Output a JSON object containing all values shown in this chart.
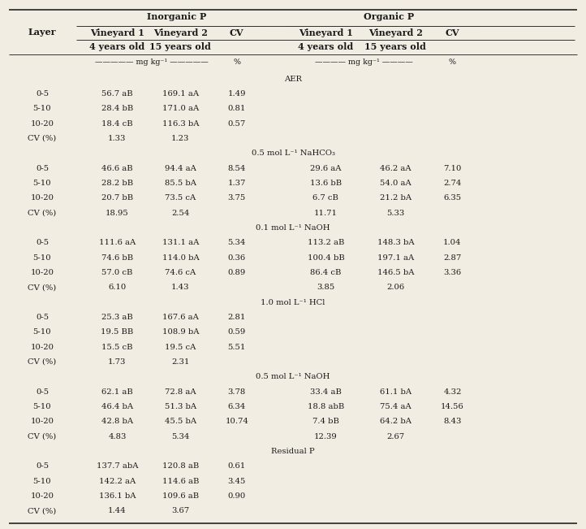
{
  "bg_color": "#f2ede3",
  "fig_width": 7.22,
  "fig_height": 6.51,
  "fs_title": 8.0,
  "fs_body": 7.2,
  "fs_units": 6.8,
  "col_x": {
    "layer": 0.072,
    "iv1": 0.2,
    "iv2": 0.308,
    "icv": 0.404,
    "ov1": 0.556,
    "ov2": 0.675,
    "ocv": 0.772
  },
  "sections": [
    {
      "section_label": "AER",
      "rows": [
        {
          "layer": "0-5",
          "v1": "56.7 aB",
          "v2": "169.1 aA",
          "cv": "1.49",
          "ov1": "",
          "ov2": "",
          "ocv": ""
        },
        {
          "layer": "5-10",
          "v1": "28.4 bB",
          "v2": "171.0 aA",
          "cv": "0.81",
          "ov1": "",
          "ov2": "",
          "ocv": ""
        },
        {
          "layer": "10-20",
          "v1": "18.4 cB",
          "v2": "116.3 bA",
          "cv": "0.57",
          "ov1": "",
          "ov2": "",
          "ocv": ""
        },
        {
          "layer": "CV (%)",
          "v1": "1.33",
          "v2": "1.23",
          "cv": "",
          "ov1": "",
          "ov2": "",
          "ocv": ""
        }
      ]
    },
    {
      "section_label": "0.5 mol L⁻¹ NaHCO₃",
      "rows": [
        {
          "layer": "0-5",
          "v1": "46.6 aB",
          "v2": "94.4 aA",
          "cv": "8.54",
          "ov1": "29.6 aA",
          "ov2": "46.2 aA",
          "ocv": "7.10"
        },
        {
          "layer": "5-10",
          "v1": "28.2 bB",
          "v2": "85.5 bA",
          "cv": "1.37",
          "ov1": "13.6 bB",
          "ov2": "54.0 aA",
          "ocv": "2.74"
        },
        {
          "layer": "10-20",
          "v1": "20.7 bB",
          "v2": "73.5 cA",
          "cv": "3.75",
          "ov1": "6.7 cB",
          "ov2": "21.2 bA",
          "ocv": "6.35"
        },
        {
          "layer": "CV (%)",
          "v1": "18.95",
          "v2": "2.54",
          "cv": "",
          "ov1": "11.71",
          "ov2": "5.33",
          "ocv": ""
        }
      ]
    },
    {
      "section_label": "0.1 mol L⁻¹ NaOH",
      "rows": [
        {
          "layer": "0-5",
          "v1": "111.6 aA",
          "v2": "131.1 aA",
          "cv": "5.34",
          "ov1": "113.2 aB",
          "ov2": "148.3 bA",
          "ocv": "1.04"
        },
        {
          "layer": "5-10",
          "v1": "74.6 bB",
          "v2": "114.0 bA",
          "cv": "0.36",
          "ov1": "100.4 bB",
          "ov2": "197.1 aA",
          "ocv": "2.87"
        },
        {
          "layer": "10-20",
          "v1": "57.0 cB",
          "v2": "74.6 cA",
          "cv": "0.89",
          "ov1": "86.4 cB",
          "ov2": "146.5 bA",
          "ocv": "3.36"
        },
        {
          "layer": "CV (%)",
          "v1": "6.10",
          "v2": "1.43",
          "cv": "",
          "ov1": "3.85",
          "ov2": "2.06",
          "ocv": ""
        }
      ]
    },
    {
      "section_label": "1.0 mol L⁻¹ HCl",
      "rows": [
        {
          "layer": "0-5",
          "v1": "25.3 aB",
          "v2": "167.6 aA",
          "cv": "2.81",
          "ov1": "",
          "ov2": "",
          "ocv": ""
        },
        {
          "layer": "5-10",
          "v1": "19.5 BB",
          "v2": "108.9 bA",
          "cv": "0.59",
          "ov1": "",
          "ov2": "",
          "ocv": ""
        },
        {
          "layer": "10-20",
          "v1": "15.5 cB",
          "v2": "19.5 cA",
          "cv": "5.51",
          "ov1": "",
          "ov2": "",
          "ocv": ""
        },
        {
          "layer": "CV (%)",
          "v1": "1.73",
          "v2": "2.31",
          "cv": "",
          "ov1": "",
          "ov2": "",
          "ocv": ""
        }
      ]
    },
    {
      "section_label": "0.5 mol L⁻¹ NaOH",
      "rows": [
        {
          "layer": "0-5",
          "v1": "62.1 aB",
          "v2": "72.8 aA",
          "cv": "3.78",
          "ov1": "33.4 aB",
          "ov2": "61.1 bA",
          "ocv": "4.32"
        },
        {
          "layer": "5-10",
          "v1": "46.4 bA",
          "v2": "51.3 bA",
          "cv": "6.34",
          "ov1": "18.8 abB",
          "ov2": "75.4 aA",
          "ocv": "14.56"
        },
        {
          "layer": "10-20",
          "v1": "42.8 bA",
          "v2": "45.5 bA",
          "cv": "10.74",
          "ov1": "7.4 bB",
          "ov2": "64.2 bA",
          "ocv": "8.43"
        },
        {
          "layer": "CV (%)",
          "v1": "4.83",
          "v2": "5.34",
          "cv": "",
          "ov1": "12.39",
          "ov2": "2.67",
          "ocv": ""
        }
      ]
    },
    {
      "section_label": "Residual P",
      "rows": [
        {
          "layer": "0-5",
          "v1": "137.7 abA",
          "v2": "120.8 aB",
          "cv": "0.61",
          "ov1": "",
          "ov2": "",
          "ocv": ""
        },
        {
          "layer": "5-10",
          "v1": "142.2 aA",
          "v2": "114.6 aB",
          "cv": "3.45",
          "ov1": "",
          "ov2": "",
          "ocv": ""
        },
        {
          "layer": "10-20",
          "v1": "136.1 bA",
          "v2": "109.6 aB",
          "cv": "0.90",
          "ov1": "",
          "ov2": "",
          "ocv": ""
        },
        {
          "layer": "CV (%)",
          "v1": "1.44",
          "v2": "3.67",
          "cv": "",
          "ov1": "",
          "ov2": "",
          "ocv": ""
        }
      ]
    }
  ]
}
